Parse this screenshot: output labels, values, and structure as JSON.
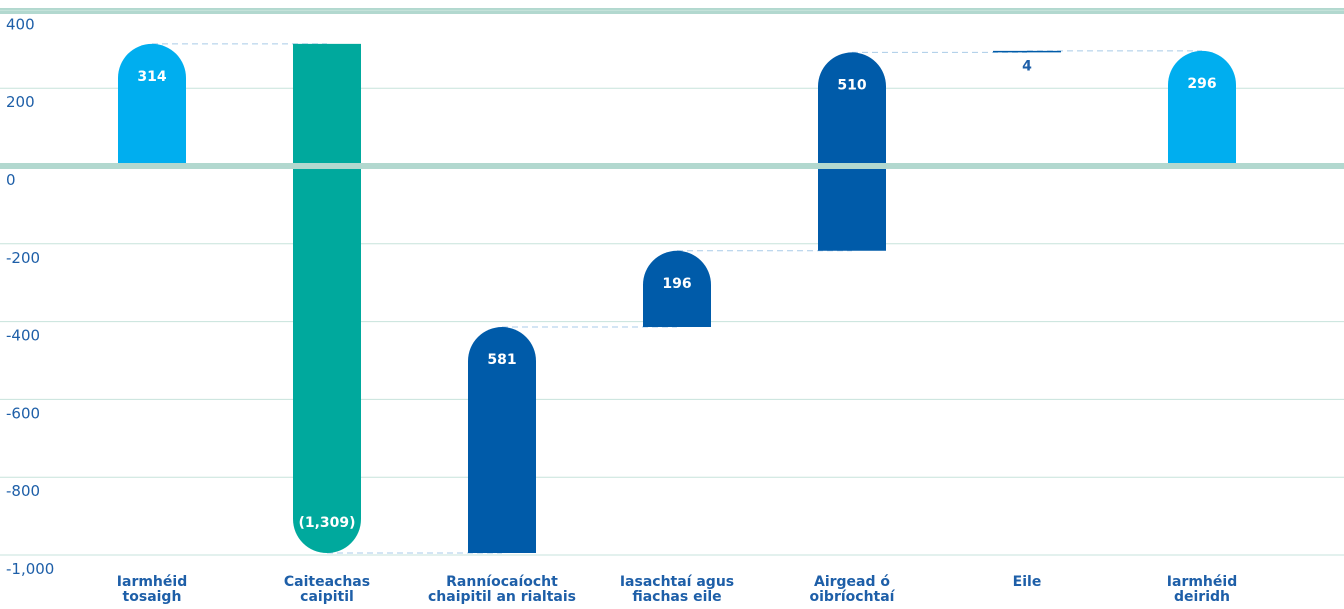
{
  "chart_data": {
    "type": "waterfall",
    "title": "",
    "xlabel": "",
    "ylabel": "",
    "ylim": [
      -1000,
      400
    ],
    "yticks": [
      "400",
      "200",
      "0",
      "-200",
      "-400",
      "-600",
      "-800",
      "-1,000"
    ],
    "yticks_values": [
      400,
      200,
      0,
      -200,
      -400,
      -600,
      -800,
      -1000
    ],
    "grid": true,
    "categories": [
      [
        "Iarmhéid",
        "tosaigh"
      ],
      [
        "Caiteachas",
        "caipitil"
      ],
      [
        "Ranníocaíocht",
        "chaipitil an rialtais"
      ],
      [
        "Iasachtaí agus",
        "fiachas eile"
      ],
      [
        "Airgead ó",
        "oibríochtaí"
      ],
      [
        "Eile"
      ],
      [
        "Iarmhéid",
        "deiridh"
      ]
    ],
    "bars": [
      {
        "kind": "total",
        "value": 314,
        "start": 0,
        "end": 314,
        "label": "314",
        "color": "#00aeef"
      },
      {
        "kind": "delta",
        "value": -1309,
        "start": 314,
        "end": -995,
        "label": "(1,309)",
        "color": "#00a99d"
      },
      {
        "kind": "delta",
        "value": 581,
        "start": -995,
        "end": -414,
        "label": "581",
        "color": "#005ba9"
      },
      {
        "kind": "delta",
        "value": 196,
        "start": -414,
        "end": -218,
        "label": "196",
        "color": "#005ba9"
      },
      {
        "kind": "delta",
        "value": 510,
        "start": -218,
        "end": 292,
        "label": "510",
        "color": "#005ba9"
      },
      {
        "kind": "delta",
        "value": 4,
        "start": 292,
        "end": 296,
        "label": "4",
        "color": "#005ba9"
      },
      {
        "kind": "total",
        "value": 296,
        "start": 0,
        "end": 296,
        "label": "296",
        "color": "#00aeef"
      }
    ],
    "colors": {
      "axis": "#b2d8cf",
      "grid": "#c7e3dc",
      "connector": "#a9cbe8",
      "text": "#1e5fa8"
    }
  }
}
